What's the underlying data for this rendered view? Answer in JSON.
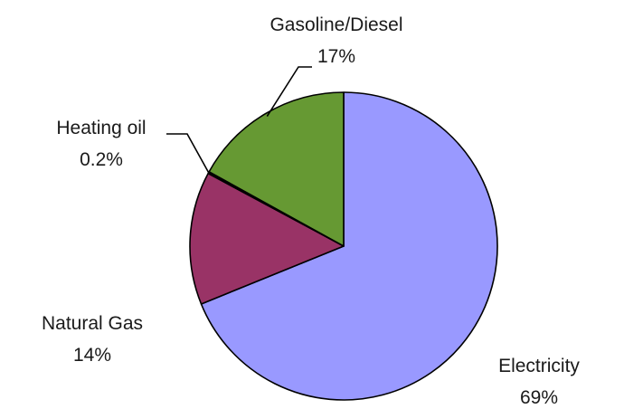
{
  "chart_data": {
    "type": "pie",
    "title": "",
    "start_angle_deg": 0,
    "direction": "clockwise",
    "slices": [
      {
        "label": "Electricity",
        "value_text": "69%",
        "value": 69,
        "color": "#9999ff"
      },
      {
        "label": "Natural Gas",
        "value_text": "14%",
        "value": 14,
        "color": "#993366"
      },
      {
        "label": "Heating oil",
        "value_text": "0.2%",
        "value": 0.2,
        "color": "#000000"
      },
      {
        "label": "Gasoline/Diesel",
        "value_text": "17%",
        "value": 17,
        "color": "#669933"
      }
    ]
  }
}
